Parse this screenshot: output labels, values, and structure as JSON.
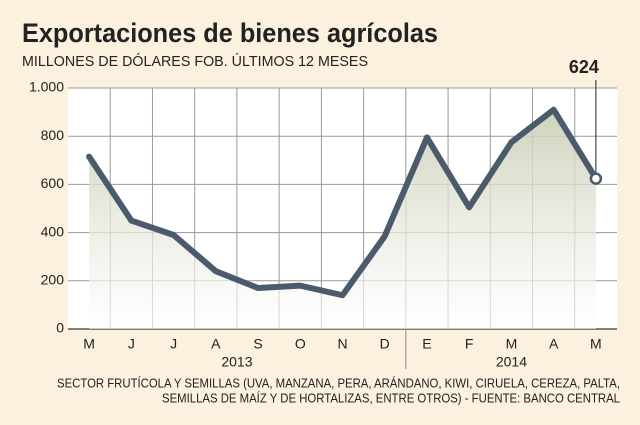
{
  "chart_data": {
    "type": "line",
    "title": "Exportaciones de bienes agrícolas",
    "subtitle": "MILLONES DE DÓLARES FOB. ÚLTIMOS 12 MESES",
    "categories": [
      "M",
      "J",
      "J",
      "A",
      "S",
      "O",
      "N",
      "D",
      "E",
      "F",
      "M",
      "A",
      "M"
    ],
    "values": [
      715,
      450,
      390,
      240,
      170,
      180,
      140,
      385,
      795,
      505,
      775,
      910,
      624
    ],
    "color": "#4b5b6b",
    "x_groups": [
      "2013",
      "2014"
    ],
    "ylim": [
      0,
      1000
    ],
    "yticks": [
      0,
      200,
      400,
      600,
      800,
      {
        "value": 1000,
        "label": "1.000"
      }
    ],
    "grid": true,
    "note": [
      "SECTOR FRUTÍCOLA Y SEMILLAS (UVA, MANZANA, PERA, ARÁNDANO, KIWI, CIRUELA, CEREZA, PALTA,",
      "SEMILLAS DE MAÍZ Y DE HORTALIZAS, ENTRE OTROS) - FUENTE: BANCO CENTRAL"
    ]
  }
}
